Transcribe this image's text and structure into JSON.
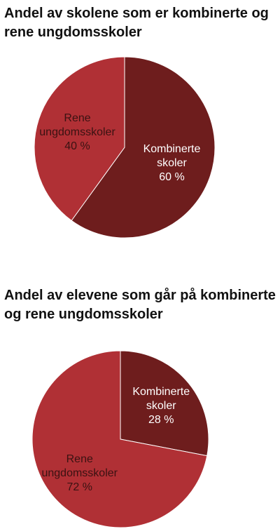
{
  "chart_data": [
    {
      "type": "pie",
      "title": "Andel av skolene som er kombinerte og rene ungdomsskoler",
      "slices": [
        {
          "name": "Kombinerte skoler",
          "label_lines": [
            "Kombinerte",
            "skoler"
          ],
          "value": 60,
          "value_label": "60 %",
          "color": "#6e1d1d",
          "label_color": "#ffffff"
        },
        {
          "name": "Rene ungdomsskoler",
          "label_lines": [
            "Rene",
            "ungdomsskoler"
          ],
          "value": 40,
          "value_label": "40 %",
          "color": "#b03035",
          "label_color": "#3a1212"
        }
      ],
      "start": "12 o'clock",
      "direction": "clockwise",
      "legend": "none"
    },
    {
      "type": "pie",
      "title": "Andel av elevene som går på kombinerte og rene ungdomsskoler",
      "slices": [
        {
          "name": "Kombinerte skoler",
          "label_lines": [
            "Kombinerte",
            "skoler"
          ],
          "value": 28,
          "value_label": "28 %",
          "color": "#6e1d1d",
          "label_color": "#ffffff"
        },
        {
          "name": "Rene ungdomsskoler",
          "label_lines": [
            "Rene",
            "ungdomsskoler"
          ],
          "value": 72,
          "value_label": "72 %",
          "color": "#b03035",
          "label_color": "#3a1212"
        }
      ],
      "start": "12 o'clock",
      "direction": "clockwise",
      "legend": "none"
    }
  ]
}
